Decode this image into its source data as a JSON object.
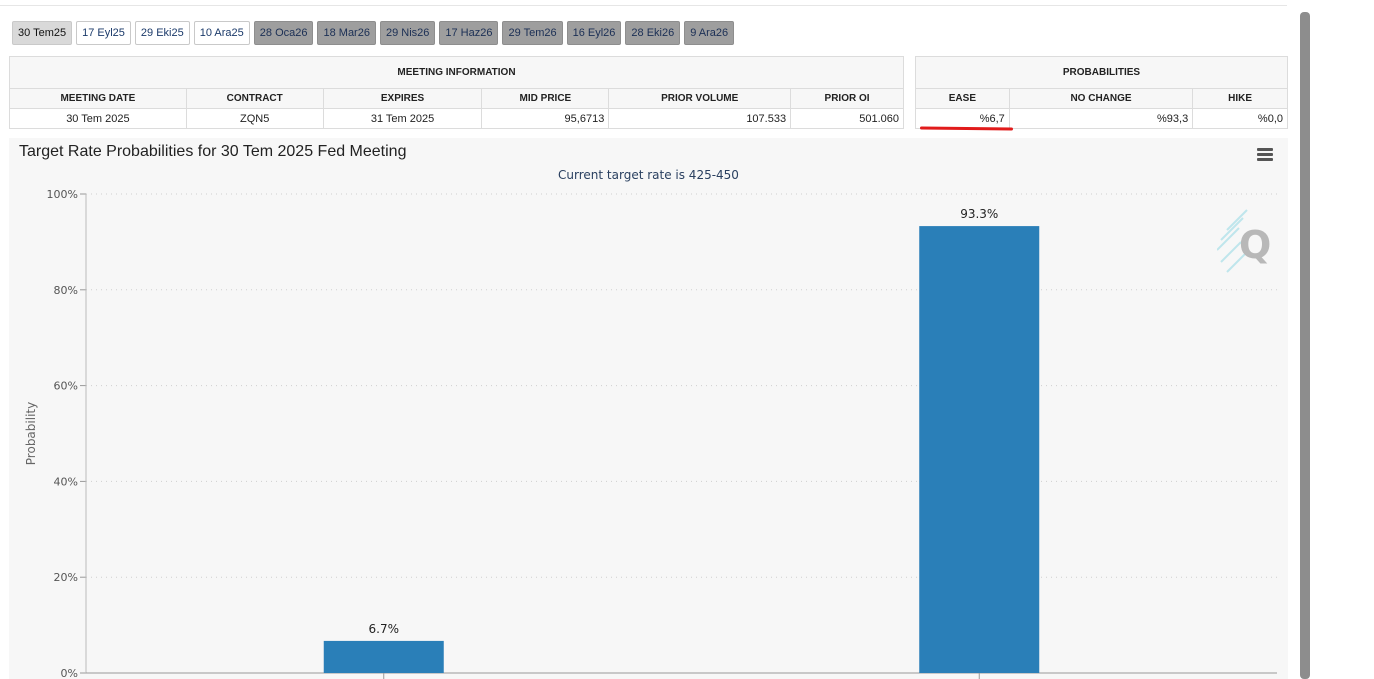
{
  "tabs": [
    {
      "label": "30 Tem25",
      "state": "active"
    },
    {
      "label": "17 Eyl25",
      "state": "normal"
    },
    {
      "label": "29 Eki25",
      "state": "normal"
    },
    {
      "label": "10 Ara25",
      "state": "normal"
    },
    {
      "label": "28 Oca26",
      "state": "future"
    },
    {
      "label": "18 Mar26",
      "state": "future"
    },
    {
      "label": "29 Nis26",
      "state": "future"
    },
    {
      "label": "17 Haz26",
      "state": "future"
    },
    {
      "label": "29 Tem26",
      "state": "future"
    },
    {
      "label": "16 Eyl26",
      "state": "future"
    },
    {
      "label": "28 Eki26",
      "state": "future"
    },
    {
      "label": "9 Ara26",
      "state": "future"
    }
  ],
  "meeting_info": {
    "heading": "MEETING INFORMATION",
    "columns": [
      "MEETING DATE",
      "CONTRACT",
      "EXPIRES",
      "MID PRICE",
      "PRIOR VOLUME",
      "PRIOR OI"
    ],
    "row": [
      "30 Tem 2025",
      "ZQN5",
      "31 Tem 2025",
      "95,6713",
      "107.533",
      "501.060"
    ]
  },
  "probabilities": {
    "heading": "PROBABILITIES",
    "columns": [
      "EASE",
      "NO CHANGE",
      "HIKE"
    ],
    "row": [
      "%6,7",
      "%93,3",
      "%0,0"
    ]
  },
  "chart": {
    "title": "Target Rate Probabilities for 30 Tem 2025 Fed Meeting",
    "subtitle": "Current target rate is 425-450"
  },
  "chart_data": {
    "type": "bar",
    "title": "Target Rate Probabilities for 30 Tem 2025 Fed Meeting",
    "subtitle": "Current target rate is 425-450",
    "ylabel": "Probability",
    "xlabel": "",
    "ylim": [
      0,
      100
    ],
    "yticks": [
      "0%",
      "20%",
      "40%",
      "60%",
      "80%",
      "100%"
    ],
    "categories": [
      "",
      ""
    ],
    "values": [
      6.7,
      93.3
    ],
    "data_labels": [
      "6.7%",
      "93.3%"
    ],
    "grid": true,
    "bar_color": "#2a7fb8"
  },
  "colors": {
    "accent": "#2a7fb8",
    "highlight": "#e11b1b"
  },
  "icons": {
    "menu": "hamburger-icon",
    "watermark": "q-logo-watermark"
  }
}
